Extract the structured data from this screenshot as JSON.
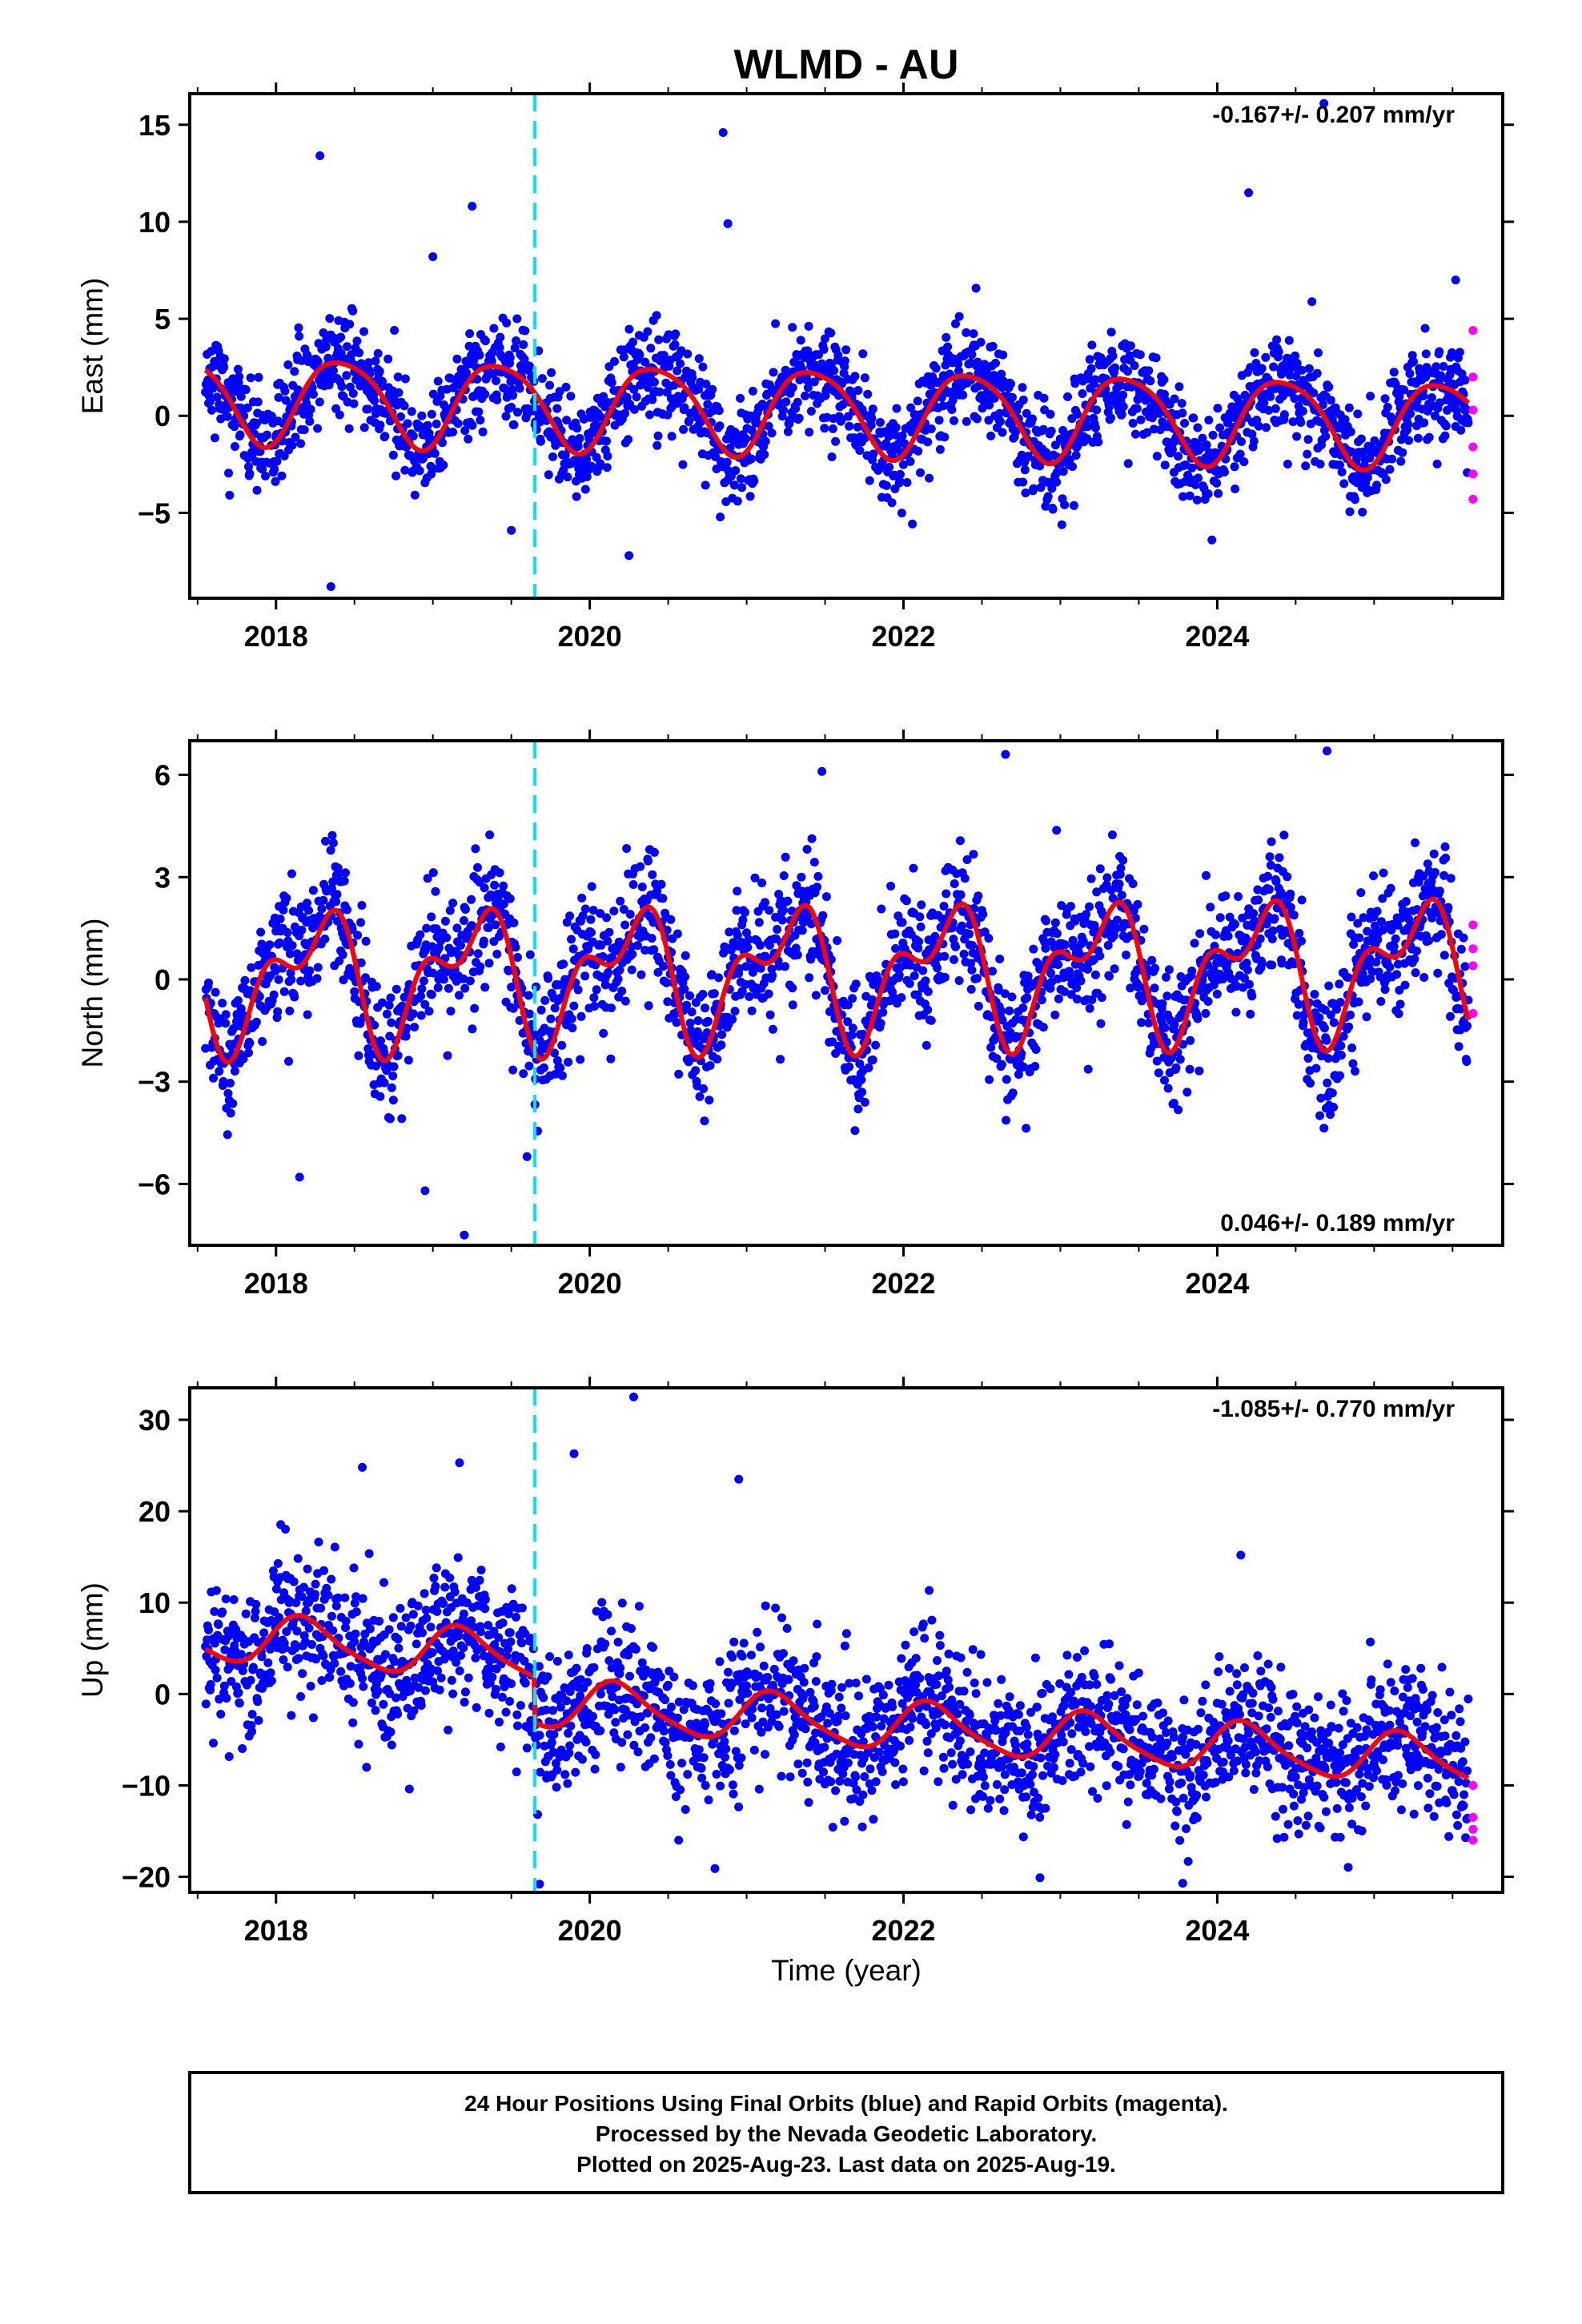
{
  "title": "WLMD - AU",
  "xlabel": "Time (year)",
  "footer": {
    "line1": "24 Hour Positions Using Final Orbits (blue) and Rapid Orbits (magenta).",
    "line2": "Processed by the Nevada Geodetic Laboratory.",
    "line3": "Plotted on 2025-Aug-23. Last data on 2025-Aug-19."
  },
  "colors": {
    "final_orbits": "#0000ff",
    "rapid_orbits": "#ff00ff",
    "model_fit": "#ff0000",
    "event_line": "#00e5ff"
  },
  "chart_data": [
    {
      "type": "scatter",
      "id": "east",
      "ylabel": "East (mm)",
      "xlim": [
        2017.45,
        2025.82
      ],
      "ylim": [
        -9.4,
        16.6
      ],
      "xticks": [
        2018,
        2020,
        2022,
        2024
      ],
      "yticks": [
        -5,
        0,
        5,
        10,
        15
      ],
      "rate_label": "-0.167+/- 0.207 mm/yr",
      "rate_position": "top-right",
      "event_line_x": 2019.65,
      "model": {
        "rate": -0.167,
        "offset": 0.3,
        "annual_amp": 2.2,
        "annual_phase": 0.42,
        "semi_amp": 0.35,
        "semi_phase": 0.2,
        "step": 0,
        "t0": 2021.5
      },
      "noise_sd": 1.3,
      "seed": 11,
      "final_range": [
        2017.55,
        2025.6
      ],
      "rapid_points": [
        [
          2025.63,
          4.4
        ],
        [
          2025.63,
          2.0
        ],
        [
          2025.63,
          0.3
        ],
        [
          2025.63,
          -1.6
        ],
        [
          2025.63,
          -3.0
        ],
        [
          2025.63,
          -4.3
        ]
      ],
      "outliers": [
        [
          2018.28,
          13.4
        ],
        [
          2018.35,
          -8.8
        ],
        [
          2019.25,
          10.8
        ],
        [
          2020.85,
          14.6
        ],
        [
          2020.88,
          9.9
        ],
        [
          2019.5,
          -5.9
        ],
        [
          2020.25,
          -7.2
        ],
        [
          2024.2,
          11.5
        ],
        [
          2024.68,
          16.1
        ],
        [
          2019.0,
          8.2
        ],
        [
          2025.52,
          7.0
        ]
      ]
    },
    {
      "type": "scatter",
      "id": "north",
      "ylabel": "North (mm)",
      "xlim": [
        2017.45,
        2025.82
      ],
      "ylim": [
        -7.8,
        7.0
      ],
      "xticks": [
        2018,
        2020,
        2022,
        2024
      ],
      "yticks": [
        -6,
        -3,
        0,
        3,
        6
      ],
      "rate_label": "0.046+/- 0.189 mm/yr",
      "rate_position": "bottom-right",
      "event_line_x": 2019.65,
      "model": {
        "rate": 0.046,
        "offset": 0.2,
        "annual_amp": 1.6,
        "annual_phase": 0.25,
        "semi_amp": 1.0,
        "semi_phase": 0.42,
        "step": 0,
        "t0": 2021.5
      },
      "noise_sd": 0.95,
      "seed": 23,
      "final_range": [
        2017.55,
        2025.6
      ],
      "rapid_points": [
        [
          2025.63,
          1.6
        ],
        [
          2025.63,
          0.9
        ],
        [
          2025.63,
          0.4
        ],
        [
          2025.63,
          -1.0
        ]
      ],
      "outliers": [
        [
          2019.2,
          -7.5
        ],
        [
          2018.95,
          -6.2
        ],
        [
          2018.15,
          -5.8
        ],
        [
          2022.65,
          6.6
        ],
        [
          2021.48,
          6.1
        ],
        [
          2024.7,
          6.7
        ],
        [
          2019.6,
          -5.2
        ]
      ]
    },
    {
      "type": "scatter",
      "id": "up",
      "ylabel": "Up (mm)",
      "xlim": [
        2017.45,
        2025.82
      ],
      "ylim": [
        -21.7,
        33.5
      ],
      "xticks": [
        2018,
        2020,
        2022,
        2024
      ],
      "yticks": [
        -20,
        -10,
        0,
        10,
        20,
        30
      ],
      "rate_label": "-1.085+/- 0.770 mm/yr",
      "rate_position": "top-right",
      "event_line_x": 2019.65,
      "model": {
        "rate": -1.085,
        "offset": 2.0,
        "annual_amp": 2.6,
        "annual_phase": 0.18,
        "semi_amp": 0.5,
        "semi_phase": 0.1,
        "step": -5.0,
        "t0": 2021.5
      },
      "noise_sd": 3.9,
      "seed": 37,
      "final_range": [
        2017.55,
        2025.6
      ],
      "rapid_points": [
        [
          2025.63,
          -10.0
        ],
        [
          2025.63,
          -13.5
        ],
        [
          2025.63,
          -14.8
        ],
        [
          2025.63,
          -16.0
        ]
      ],
      "outliers": [
        [
          2020.28,
          32.5
        ],
        [
          2019.9,
          26.3
        ],
        [
          2019.17,
          25.3
        ],
        [
          2018.55,
          24.8
        ],
        [
          2020.95,
          23.5
        ],
        [
          2019.68,
          -20.8
        ],
        [
          2023.78,
          -20.7
        ],
        [
          2022.87,
          -20.1
        ],
        [
          2018.85,
          -10.4
        ],
        [
          2024.15,
          15.2
        ]
      ]
    }
  ]
}
